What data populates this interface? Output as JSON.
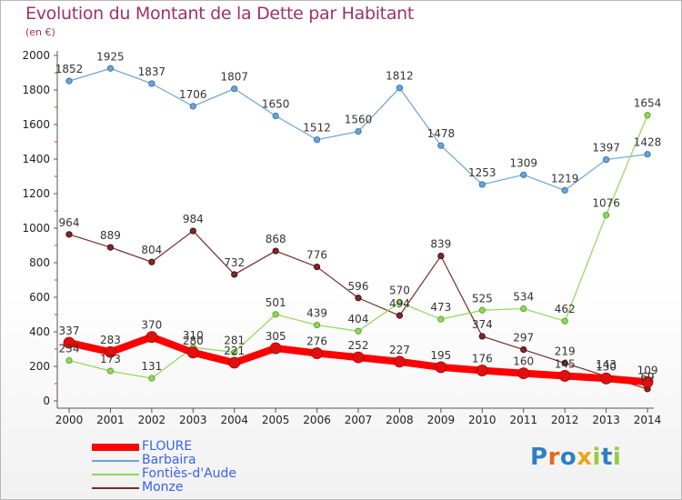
{
  "header": {
    "title": "Evolution du Montant de la Dette par Habitant",
    "subtitle": "(en €)"
  },
  "legend": [
    {
      "name": "FLOURE",
      "color": "#ff0000"
    },
    {
      "name": "Barbaira",
      "color": "#6aa4d8"
    },
    {
      "name": "Fontiès-d'Aude",
      "color": "#8fd65a"
    },
    {
      "name": "Monze",
      "color": "#7a2a2a"
    }
  ],
  "logo": {
    "letters": [
      "P",
      "r",
      "o",
      "x",
      "i",
      "t",
      "i"
    ],
    "colors": [
      "#2f7fc4",
      "#e06a1e",
      "#2f7fc4",
      "#e8a81e",
      "#9acb3b",
      "#2f7fc4",
      "#9acb3b"
    ]
  },
  "chart_data": {
    "type": "line",
    "title": "Evolution du Montant de la Dette par Habitant",
    "subtitle": "(en €)",
    "x": [
      "2000",
      "2001",
      "2002",
      "2003",
      "2004",
      "2005",
      "2006",
      "2007",
      "2008",
      "2009",
      "2010",
      "2011",
      "2012",
      "2013",
      "2014"
    ],
    "ylim": [
      0,
      2000
    ],
    "yticks": [
      0,
      200,
      400,
      600,
      800,
      1000,
      1200,
      1400,
      1600,
      1800,
      2000
    ],
    "grid": false,
    "legend_position": "bottom-left",
    "series": [
      {
        "name": "Barbaira",
        "color": "#6aa4d8",
        "values": [
          1852,
          1925,
          1837,
          1706,
          1807,
          1650,
          1512,
          1560,
          1812,
          1478,
          1253,
          1309,
          1219,
          1397,
          1428
        ]
      },
      {
        "name": "Monze",
        "color": "#7a2a2a",
        "values": [
          964,
          889,
          804,
          984,
          732,
          868,
          776,
          596,
          494,
          839,
          374,
          297,
          219,
          143,
          69
        ]
      },
      {
        "name": "Fontiès-d'Aude",
        "color": "#8fd65a",
        "values": [
          234,
          173,
          131,
          310,
          281,
          501,
          439,
          404,
          570,
          473,
          525,
          534,
          462,
          1076,
          1654
        ]
      },
      {
        "name": "FLOURE",
        "color": "#ff0000",
        "values": [
          337,
          283,
          370,
          280,
          221,
          305,
          276,
          252,
          227,
          195,
          176,
          160,
          145,
          130,
          109
        ]
      }
    ]
  }
}
